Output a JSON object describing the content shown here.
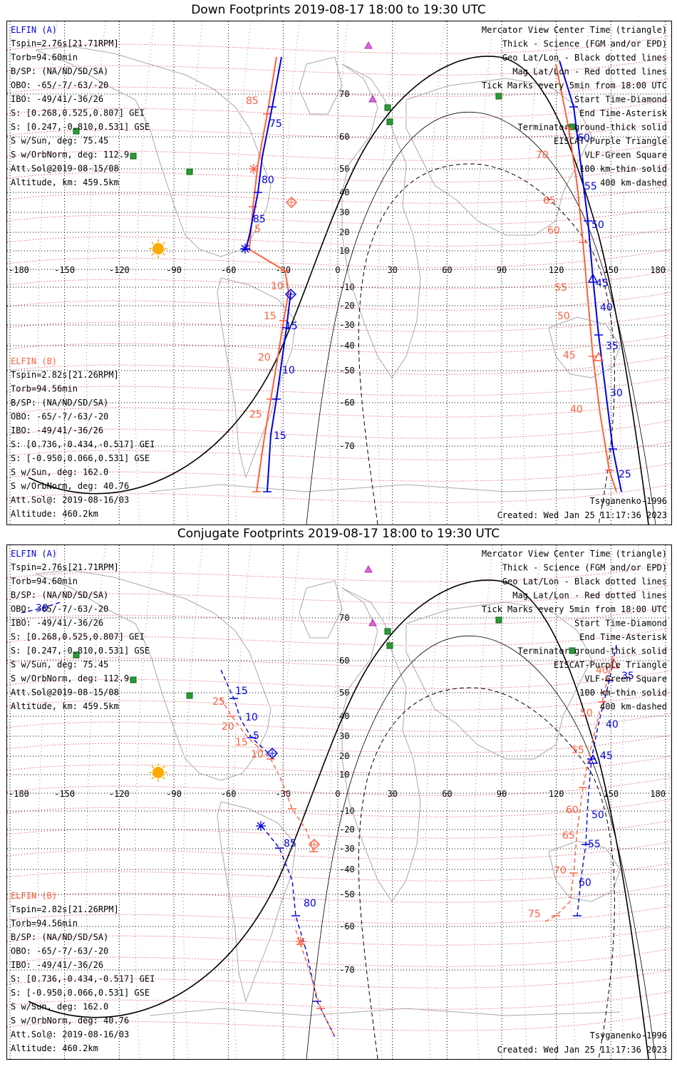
{
  "panels": [
    {
      "id": "down",
      "title": "Down Footprints 2019-08-17 18:00 to 19:30 UTC",
      "tick_labels_a": [
        "75",
        "80",
        "85",
        "15",
        "10",
        "15"
      ],
      "tick_labels_b": [
        "85",
        "5",
        "10",
        "15",
        "20",
        "25"
      ],
      "east_labels_a": [
        "60",
        "55",
        "50",
        "45",
        "40",
        "35",
        "30",
        "25"
      ],
      "east_labels_b": [
        "70",
        "65",
        "60",
        "55",
        "50",
        "45",
        "40"
      ]
    },
    {
      "id": "conjugate",
      "title": "Conjugate Footprints 2019-08-17 18:00 to 19:30 UTC",
      "tick_labels_a": [
        "30",
        "15",
        "10",
        "5",
        "85",
        "80"
      ],
      "tick_labels_b": [
        "25",
        "20",
        "15",
        "10"
      ],
      "east_labels_a": [
        "35",
        "40",
        "45",
        "50",
        "55",
        "60"
      ],
      "east_labels_b": [
        "40",
        "50",
        "55",
        "60",
        "65",
        "70",
        "75"
      ]
    }
  ],
  "elfin_a": {
    "name": "ELFIN (A)",
    "color": "#0000dd",
    "lines": [
      "Tspin=2.76s[21.71RPM]",
      "Torb=94.60min",
      "B/SP: (NA/ND/SD/SA)",
      "OBO: -65/-7/-63/-20",
      "IBO: -49/41/-36/26",
      "S: [0.268,0.525,0.807] GEI",
      "S: [0.247,-0.810,0.531] GSE",
      "S w/Sun, deg: 75.45",
      "S w/OrbNorm, deg: 112.9",
      "Att.Sol@2019-08-15/08",
      "Altitude, km: 459.5km"
    ]
  },
  "elfin_b": {
    "name": "ELFIN (B)",
    "color": "#ff6040",
    "lines": [
      "Tspin=2.82s[21.26RPM]",
      "Torb=94.56min",
      "B/SP: (NA/ND/SD/SA)",
      "OBO: -65/-7/-63/-20",
      "IBO: -49/41/-36/26",
      "S: [0.736,-0.434,-0.517] GEI",
      "S: [-0.950,0.066,0.531] GSE",
      "S w/Sun, deg: 162.0",
      "S w/OrbNorm, deg: 40.76",
      "Att.Sol@: 2019-08-16/03",
      "Altitude: 460.2km"
    ]
  },
  "legend": {
    "lines": [
      "Mercator View Center Time (triangle)",
      "Thick - Science (FGM and/or EPD)",
      "Geo Lat/Lon - Black dotted lines",
      "Mag Lat/Lon - Red dotted lines",
      "Tick Marks every 5min from 18:00 UTC",
      "Start Time-Diamond",
      "End Time-Asterisk",
      "Terminator ground-thick solid",
      "EISCAT-Purple Triangle",
      "VLF-Green Square",
      "100 km-thin solid",
      "400 km-dashed"
    ],
    "colors": [
      "#000000",
      "#000000",
      "#000000",
      "#ff2020",
      "#000000",
      "#000000",
      "#000000",
      "#000000",
      "#cc55cc",
      "#2a9a3a",
      "#000000",
      "#000000"
    ]
  },
  "footer": {
    "model": "Tsyganenko-1996",
    "created": "Created: Wed Jan 25 11:17:36 2023"
  },
  "axes": {
    "lon_ticks": [
      "-180",
      "-150",
      "-120",
      "-90",
      "-60",
      "-30",
      "0",
      "30",
      "60",
      "90",
      "120",
      "150",
      "180"
    ],
    "lat_ticks": [
      "70",
      "60",
      "50",
      "40",
      "30",
      "20",
      "10",
      "0",
      "-10",
      "-20",
      "-30",
      "-40",
      "-50",
      "-60",
      "-70"
    ]
  },
  "colors": {
    "elfin_a": "#0000dd",
    "elfin_b": "#ff6040",
    "mag_grid": "#ff2020",
    "eiscat": "#cc55cc",
    "vlf": "#2a9a3a",
    "sun": "#ffaa00",
    "coast": "#a8a8a8"
  }
}
